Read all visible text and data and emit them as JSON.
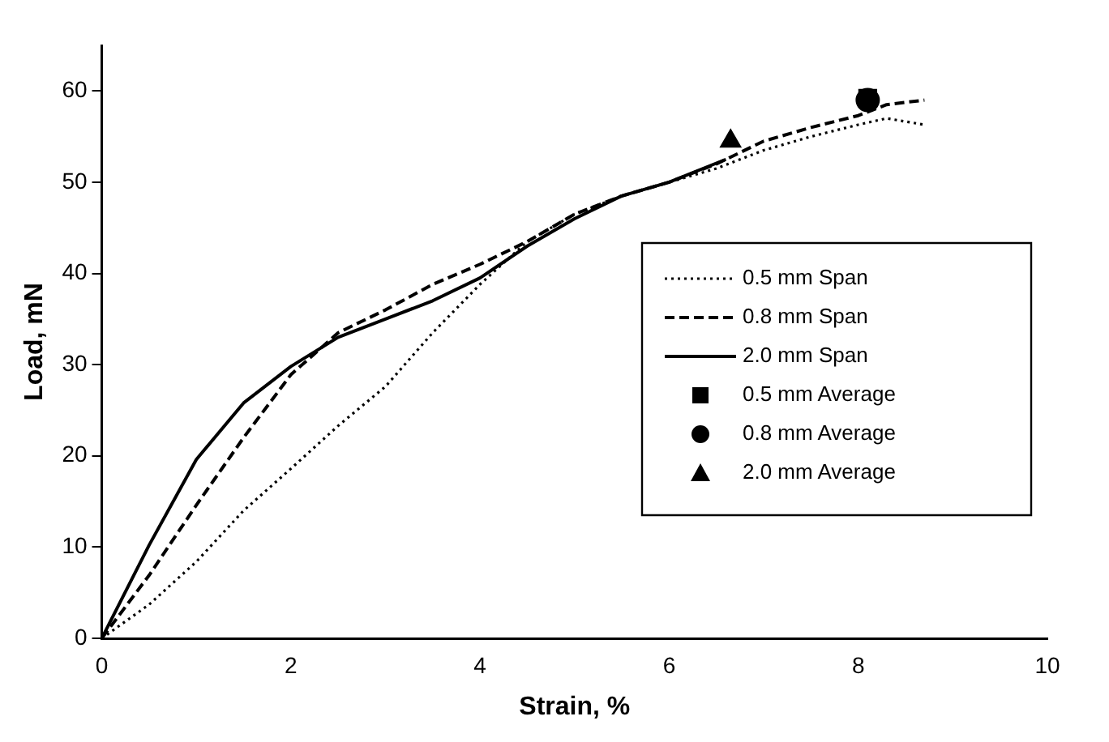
{
  "chart_data": {
    "type": "line",
    "xlabel": "Strain, %",
    "ylabel": "Load, mN",
    "xlim": [
      0,
      10
    ],
    "xticks": [
      0,
      2,
      4,
      6,
      8,
      10
    ],
    "ylim": [
      0,
      65
    ],
    "yticks": [
      0,
      10,
      20,
      30,
      40,
      50,
      60
    ],
    "grid": false,
    "legend": "right",
    "series": [
      {
        "name": "0.5 mm Span",
        "type": "line",
        "line_style": "dotted",
        "marker": "none",
        "color": "#000000",
        "x": [
          0,
          0.5,
          1,
          1.5,
          2,
          2.5,
          3,
          3.5,
          4,
          4.5,
          5,
          5.5,
          6,
          6.5,
          7,
          7.5,
          8,
          8.3,
          8.7
        ],
        "values": [
          0,
          3.7,
          8.4,
          14,
          18.6,
          23.3,
          27.6,
          33.5,
          38.8,
          43.5,
          46.5,
          48.5,
          50,
          51.5,
          53.5,
          55,
          56.3,
          57,
          56.3
        ]
      },
      {
        "name": "0.8 mm Span",
        "type": "line",
        "line_style": "dashed",
        "marker": "none",
        "color": "#000000",
        "x": [
          0,
          0.5,
          1,
          1.5,
          2,
          2.5,
          3,
          3.5,
          4,
          4.5,
          5,
          5.5,
          6,
          6.5,
          7,
          7.5,
          8,
          8.3,
          8.7
        ],
        "values": [
          0,
          6.9,
          14.6,
          22,
          28.9,
          33.5,
          36,
          38.8,
          41,
          43.5,
          46.5,
          48.5,
          50,
          52,
          54.5,
          56,
          57.3,
          58.5,
          59
        ]
      },
      {
        "name": "2.0 mm Span",
        "type": "line",
        "line_style": "solid",
        "marker": "none",
        "color": "#000000",
        "x": [
          0,
          0.5,
          1,
          1.5,
          2,
          2.5,
          3,
          3.5,
          4,
          4.5,
          5,
          5.5,
          6,
          6.6
        ],
        "values": [
          0,
          10.2,
          19.6,
          25.8,
          29.8,
          33,
          35,
          37,
          39.5,
          43,
          46,
          48.5,
          50,
          52.5
        ]
      },
      {
        "name": "0.5 mm Average",
        "type": "scatter",
        "marker": "square",
        "color": "#000000",
        "x": [
          8.1
        ],
        "values": [
          59.2
        ]
      },
      {
        "name": "0.8 mm Average",
        "type": "scatter",
        "marker": "circle",
        "color": "#000000",
        "x": [
          8.1
        ],
        "values": [
          59
        ]
      },
      {
        "name": "2.0 mm Average",
        "type": "scatter",
        "marker": "triangle",
        "color": "#000000",
        "x": [
          6.65
        ],
        "values": [
          54.5
        ]
      }
    ]
  }
}
